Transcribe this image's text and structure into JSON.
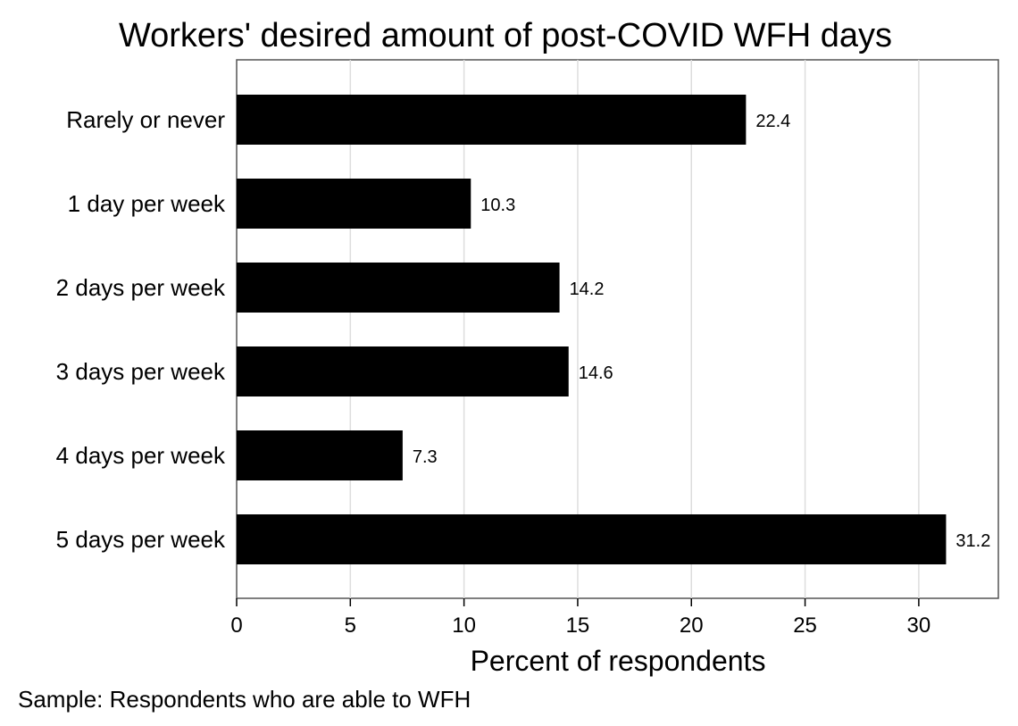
{
  "chart_data": {
    "type": "bar",
    "orientation": "horizontal",
    "title": "Workers' desired amount of post-COVID WFH days",
    "categories": [
      "Rarely or never",
      "1 day per week",
      "2 days per week",
      "3 days per week",
      "4 days per week",
      "5 days per week"
    ],
    "values": [
      22.4,
      10.3,
      14.2,
      14.6,
      7.3,
      31.2
    ],
    "data_labels": [
      "22.4",
      "10.3",
      "14.2",
      "14.6",
      "7.3",
      "31.2"
    ],
    "xlabel": "Percent of respondents",
    "ylabel": "",
    "xlim": [
      0,
      33.5
    ],
    "xticks": [
      0,
      5,
      10,
      15,
      20,
      25,
      30
    ],
    "grid": "vertical",
    "legend": "none",
    "bar_color": "#000000",
    "grid_color": "#dddddd",
    "note": "Sample: Respondents who are able to WFH"
  }
}
